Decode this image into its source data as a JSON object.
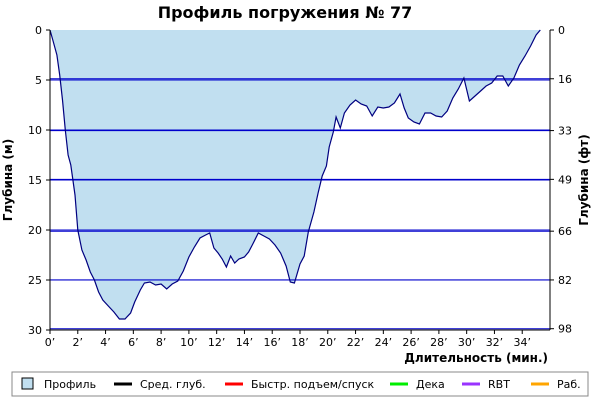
{
  "chart_data": {
    "type": "area",
    "title": "Профиль погружения № 77",
    "xlabel": "Длительность (мин.)",
    "ylabel_left": "Глубина (м)",
    "ylabel_right": "Глубина (фт)",
    "xlim": [
      0,
      36
    ],
    "ylim": [
      0,
      30
    ],
    "y_inverted": true,
    "x_tick_values": [
      0,
      2,
      4,
      6,
      8,
      10,
      12,
      14,
      16,
      18,
      20,
      22,
      24,
      26,
      28,
      30,
      32,
      34
    ],
    "x_tick_labels": [
      "0’",
      "2’",
      "4’",
      "6’",
      "8’",
      "10’",
      "12’",
      "14’",
      "16’",
      "18’",
      "20’",
      "22’",
      "24’",
      "26’",
      "28’",
      "30’",
      "32’",
      "34’"
    ],
    "y_left_ticks": [
      0,
      5,
      10,
      15,
      20,
      25,
      30
    ],
    "y_left_tick_labels": [
      "0",
      "5",
      "10",
      "15",
      "20",
      "25",
      "30"
    ],
    "y_right_ticks": [
      0,
      16,
      33,
      49,
      66,
      82,
      98
    ],
    "y_right_tick_labels": [
      "0",
      "16",
      "33",
      "49",
      "66",
      "82",
      "98"
    ],
    "grid": true,
    "colors": {
      "area_fill": "#c1dff0",
      "profile_line": "#000080",
      "grid_line": "#0000cc",
      "avg_depth": "#000000",
      "fast_ascent": "#ff0000",
      "deco": "#00ee00",
      "rbt": "#9933ff",
      "work": "#ffa500"
    },
    "series": [
      {
        "name": "Профиль",
        "points": [
          [
            0.0,
            0.0
          ],
          [
            0.2,
            1.0
          ],
          [
            0.5,
            2.5
          ],
          [
            0.7,
            4.5
          ],
          [
            0.9,
            7.0
          ],
          [
            1.1,
            10.0
          ],
          [
            1.3,
            12.5
          ],
          [
            1.5,
            13.5
          ],
          [
            1.8,
            16.5
          ],
          [
            2.0,
            20.0
          ],
          [
            2.3,
            22.0
          ],
          [
            2.6,
            23.0
          ],
          [
            2.9,
            24.2
          ],
          [
            3.2,
            25.0
          ],
          [
            3.5,
            26.2
          ],
          [
            3.8,
            27.0
          ],
          [
            4.2,
            27.6
          ],
          [
            4.6,
            28.2
          ],
          [
            5.0,
            28.9
          ],
          [
            5.4,
            28.9
          ],
          [
            5.8,
            28.3
          ],
          [
            6.1,
            27.2
          ],
          [
            6.5,
            26.0
          ],
          [
            6.8,
            25.3
          ],
          [
            7.2,
            25.2
          ],
          [
            7.6,
            25.5
          ],
          [
            8.0,
            25.4
          ],
          [
            8.4,
            25.9
          ],
          [
            8.8,
            25.4
          ],
          [
            9.2,
            25.1
          ],
          [
            9.6,
            24.1
          ],
          [
            10.0,
            22.7
          ],
          [
            10.4,
            21.7
          ],
          [
            10.8,
            20.8
          ],
          [
            11.2,
            20.5
          ],
          [
            11.5,
            20.3
          ],
          [
            11.8,
            21.8
          ],
          [
            12.1,
            22.3
          ],
          [
            12.4,
            22.9
          ],
          [
            12.7,
            23.7
          ],
          [
            13.0,
            22.6
          ],
          [
            13.3,
            23.3
          ],
          [
            13.6,
            22.9
          ],
          [
            14.0,
            22.7
          ],
          [
            14.3,
            22.2
          ],
          [
            14.6,
            21.4
          ],
          [
            15.0,
            20.3
          ],
          [
            15.4,
            20.6
          ],
          [
            15.8,
            20.9
          ],
          [
            16.2,
            21.5
          ],
          [
            16.6,
            22.3
          ],
          [
            17.0,
            23.6
          ],
          [
            17.3,
            25.2
          ],
          [
            17.6,
            25.3
          ],
          [
            18.0,
            23.4
          ],
          [
            18.3,
            22.6
          ],
          [
            18.6,
            20.2
          ],
          [
            19.0,
            18.2
          ],
          [
            19.3,
            16.3
          ],
          [
            19.6,
            14.6
          ],
          [
            19.9,
            13.6
          ],
          [
            20.1,
            11.7
          ],
          [
            20.4,
            10.2
          ],
          [
            20.6,
            8.7
          ],
          [
            20.9,
            9.8
          ],
          [
            21.2,
            8.3
          ],
          [
            21.6,
            7.5
          ],
          [
            22.0,
            7.0
          ],
          [
            22.4,
            7.4
          ],
          [
            22.8,
            7.6
          ],
          [
            23.2,
            8.6
          ],
          [
            23.6,
            7.7
          ],
          [
            24.0,
            7.8
          ],
          [
            24.4,
            7.7
          ],
          [
            24.8,
            7.3
          ],
          [
            25.2,
            6.4
          ],
          [
            25.5,
            7.8
          ],
          [
            25.8,
            8.8
          ],
          [
            26.2,
            9.2
          ],
          [
            26.6,
            9.4
          ],
          [
            27.0,
            8.3
          ],
          [
            27.4,
            8.3
          ],
          [
            27.8,
            8.6
          ],
          [
            28.2,
            8.7
          ],
          [
            28.6,
            8.1
          ],
          [
            29.0,
            6.8
          ],
          [
            29.4,
            5.9
          ],
          [
            29.8,
            4.8
          ],
          [
            30.2,
            7.1
          ],
          [
            30.6,
            6.6
          ],
          [
            31.0,
            6.1
          ],
          [
            31.4,
            5.6
          ],
          [
            31.8,
            5.3
          ],
          [
            32.2,
            4.6
          ],
          [
            32.6,
            4.6
          ],
          [
            33.0,
            5.6
          ],
          [
            33.4,
            4.8
          ],
          [
            33.8,
            3.5
          ],
          [
            34.2,
            2.6
          ],
          [
            34.6,
            1.6
          ],
          [
            35.0,
            0.5
          ],
          [
            35.3,
            0.0
          ]
        ]
      }
    ],
    "legend": {
      "position": "bottom",
      "items": [
        {
          "label": "Профиль",
          "kind": "box",
          "color": "#c1dff0"
        },
        {
          "label": "Сред. глуб.",
          "kind": "line",
          "color": "#000000"
        },
        {
          "label": "Быстр. подъем/спуск",
          "kind": "line",
          "color": "#ff0000"
        },
        {
          "label": "Дека",
          "kind": "line",
          "color": "#00ee00"
        },
        {
          "label": "RBT",
          "kind": "line",
          "color": "#9933ff"
        },
        {
          "label": "Раб.",
          "kind": "line",
          "color": "#ffa500"
        }
      ]
    }
  }
}
